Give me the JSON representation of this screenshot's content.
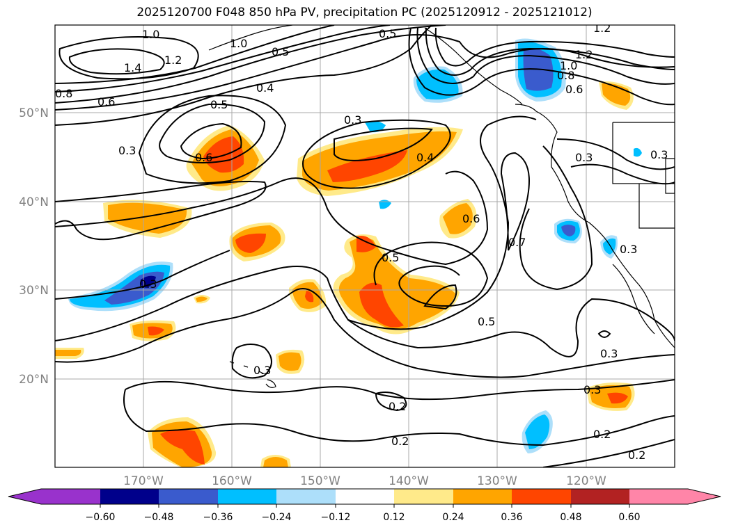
{
  "title": "2025120700 F048 850 hPa PV, precipitation PC (2025120912 - 2025121012)",
  "map": {
    "lat_labels": [
      "50°N",
      "40°N",
      "30°N",
      "20°N"
    ],
    "lon_labels": [
      "170°W",
      "160°W",
      "150°W",
      "140°W",
      "130°W",
      "120°W"
    ],
    "grid": true
  },
  "contour_labels": [
    "1.0",
    "1.4",
    "1.2",
    "0.8",
    "0.6",
    "1.0",
    "0.5",
    "0.4",
    "0.5",
    "1.2",
    "1.2",
    "1.0",
    "0.8",
    "0.6",
    "0.5",
    "0.3",
    "0.6",
    "0.3",
    "0.4",
    "0.3",
    "0.6",
    "0.7",
    "0.3",
    "0.3",
    "0.5",
    "0.3",
    "0.3",
    "0.3",
    "0.2",
    "0.2",
    "0.2",
    "0.2",
    "0.3",
    "0.5"
  ],
  "colorbar": {
    "colors": [
      "#9932CC",
      "#00008B",
      "#3A5BCD",
      "#00BFFF",
      "#ADDFFA",
      "#FFFFFF",
      "#FFEA8A",
      "#FFA500",
      "#FF4500",
      "#B22222",
      "#FF85A8"
    ],
    "tick_labels": [
      "−0.60",
      "−0.48",
      "−0.36",
      "−0.24",
      "−0.12",
      "0.12",
      "0.24",
      "0.36",
      "0.48",
      "0.60"
    ],
    "extend": "both"
  }
}
